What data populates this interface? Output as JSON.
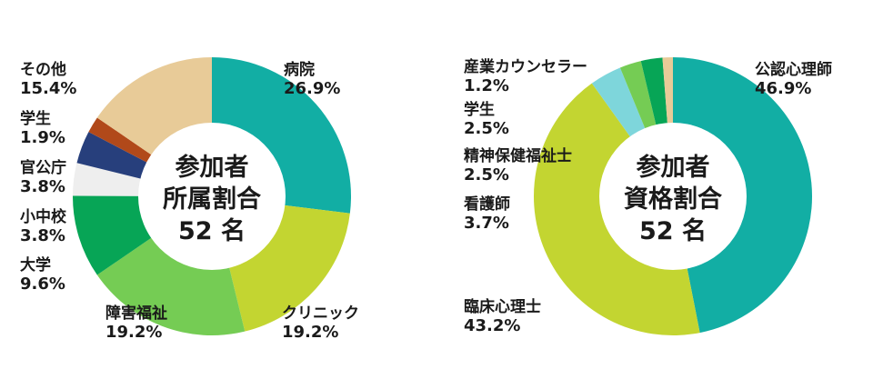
{
  "colors": {
    "teal": "#12aea4",
    "lime": "#c3d531",
    "green": "#75cc54",
    "dark_green": "#07a556",
    "light_gray": "#eeeeee",
    "navy": "#273f7c",
    "brown": "#b1491a",
    "beige": "#e8cb98",
    "light_cyan": "#7ed6db",
    "text": "#1a1a1a"
  },
  "chart_data": [
    {
      "type": "pie",
      "donut": true,
      "center_text": [
        "参加者",
        "所属割合",
        "52 名"
      ],
      "slices": [
        {
          "label": "病院",
          "value": 26.9,
          "value_label": "26.9%",
          "color": "#12aea4"
        },
        {
          "label": "クリニック",
          "value": 19.2,
          "value_label": "19.2%",
          "color": "#c3d531"
        },
        {
          "label": "障害福祉",
          "value": 19.2,
          "value_label": "19.2%",
          "color": "#75cc54"
        },
        {
          "label": "大学",
          "value": 9.6,
          "value_label": "9.6%",
          "color": "#07a556"
        },
        {
          "label": "小中校",
          "value": 3.8,
          "value_label": "3.8%",
          "color": "#eeeeee"
        },
        {
          "label": "官公庁",
          "value": 3.8,
          "value_label": "3.8%",
          "color": "#273f7c"
        },
        {
          "label": "学生",
          "value": 1.9,
          "value_label": "1.9%",
          "color": "#b1491a"
        },
        {
          "label": "その他",
          "value": 15.4,
          "value_label": "15.4%",
          "color": "#e8cb98"
        }
      ]
    },
    {
      "type": "pie",
      "donut": true,
      "center_text": [
        "参加者",
        "資格割合",
        "52 名"
      ],
      "slices": [
        {
          "label": "公認心理師",
          "value": 46.9,
          "value_label": "46.9%",
          "color": "#12aea4"
        },
        {
          "label": "臨床心理士",
          "value": 43.2,
          "value_label": "43.2%",
          "color": "#c3d531"
        },
        {
          "label": "看護師",
          "value": 3.7,
          "value_label": "3.7%",
          "color": "#7ed6db"
        },
        {
          "label": "精神保健福祉士",
          "value": 2.5,
          "value_label": "2.5%",
          "color": "#75cc54"
        },
        {
          "label": "学生",
          "value": 2.5,
          "value_label": "2.5%",
          "color": "#07a556"
        },
        {
          "label": "産業カウンセラー",
          "value": 1.2,
          "value_label": "1.2%",
          "color": "#e8cb98"
        }
      ]
    }
  ]
}
